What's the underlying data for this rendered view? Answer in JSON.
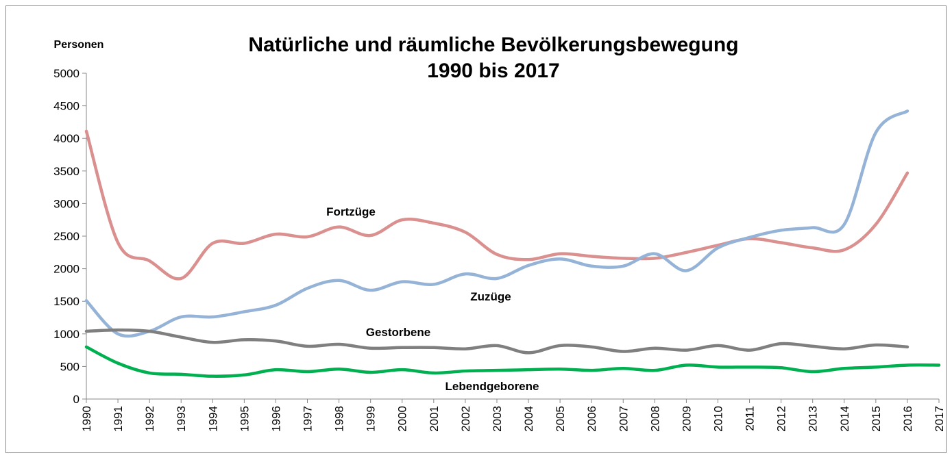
{
  "chart_data": {
    "type": "line",
    "title": "Natürliche und räumliche Bevölkerungsbewegung",
    "subtitle": "1990 bis 2017",
    "y_label": "Personen",
    "categories": [
      "1990",
      "1991",
      "1992",
      "1993",
      "1994",
      "1995",
      "1996",
      "1997",
      "1998",
      "1999",
      "2000",
      "2001",
      "2002",
      "2003",
      "2004",
      "2005",
      "2006",
      "2007",
      "2008",
      "2009",
      "2010",
      "2011",
      "2012",
      "2013",
      "2014",
      "2015",
      "2016",
      "2017"
    ],
    "series": [
      {
        "name": "Fortzüge",
        "color": "#d9908e",
        "values": [
          4110,
          2400,
          2120,
          1850,
          2390,
          2390,
          2530,
          2490,
          2640,
          2510,
          2750,
          2700,
          2560,
          2220,
          2140,
          2230,
          2190,
          2160,
          2160,
          2250,
          2360,
          2460,
          2400,
          2320,
          2290,
          2680,
          3470,
          null
        ]
      },
      {
        "name": "Zuzüge",
        "color": "#95b3d7",
        "values": [
          1510,
          1000,
          1040,
          1260,
          1260,
          1340,
          1440,
          1700,
          1820,
          1670,
          1800,
          1760,
          1920,
          1850,
          2050,
          2150,
          2040,
          2040,
          2230,
          1970,
          2320,
          2480,
          2590,
          2630,
          2680,
          4090,
          4420,
          null
        ]
      },
      {
        "name": "Gestorbene",
        "color": "#7f7f7f",
        "values": [
          1040,
          1060,
          1040,
          950,
          870,
          910,
          890,
          810,
          840,
          780,
          790,
          790,
          770,
          820,
          710,
          820,
          800,
          730,
          780,
          750,
          820,
          750,
          850,
          810,
          770,
          830,
          800,
          null
        ]
      },
      {
        "name": "Lebendgeborene",
        "color": "#00b050",
        "values": [
          800,
          550,
          400,
          380,
          350,
          370,
          450,
          420,
          460,
          410,
          450,
          400,
          430,
          440,
          450,
          460,
          440,
          470,
          440,
          520,
          490,
          490,
          480,
          420,
          470,
          490,
          520,
          520
        ]
      }
    ],
    "ylim": [
      0,
      5000
    ],
    "yticks": [
      0,
      500,
      1000,
      1500,
      2000,
      2500,
      3000,
      3500,
      4000,
      4500,
      5000
    ],
    "grid": false
  }
}
